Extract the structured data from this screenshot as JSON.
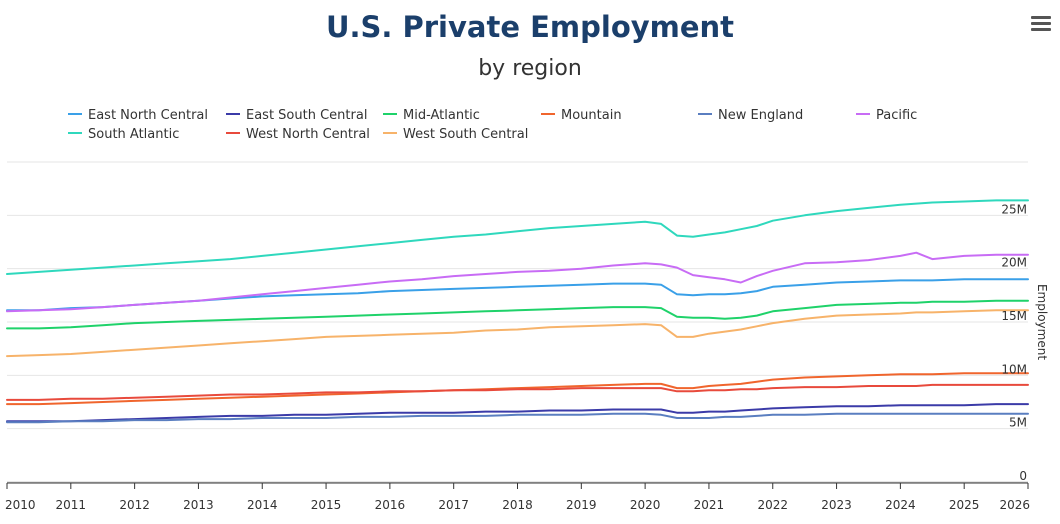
{
  "toolbar": {
    "menu_icon": "hamburger-menu-icon"
  },
  "chart_data": {
    "type": "line",
    "title": "U.S. Private Employment",
    "subtitle": "by region",
    "xlabel": "",
    "ylabel": "Employment",
    "xlim": [
      2010,
      2026
    ],
    "ylim": [
      0,
      30000000
    ],
    "y_axis_position": "right",
    "grid": true,
    "legend_position": "top",
    "x_ticks": [
      "2010",
      "2011",
      "2012",
      "2013",
      "2014",
      "2015",
      "2016",
      "2017",
      "2018",
      "2019",
      "2020",
      "2021",
      "2022",
      "2023",
      "2024",
      "2025",
      "2026"
    ],
    "y_ticks": [
      "0",
      "5M",
      "10M",
      "15M",
      "20M",
      "25M"
    ],
    "x": [
      2010,
      2010.5,
      2011,
      2011.5,
      2012,
      2012.5,
      2013,
      2013.5,
      2014,
      2014.5,
      2015,
      2015.5,
      2016,
      2016.5,
      2017,
      2017.5,
      2018,
      2018.5,
      2019,
      2019.5,
      2020,
      2020.25,
      2020.5,
      2020.75,
      2021,
      2021.25,
      2021.5,
      2021.75,
      2022,
      2022.5,
      2023,
      2023.5,
      2024,
      2024.25,
      2024.5,
      2025,
      2025.5,
      2026
    ],
    "series": [
      {
        "name": "East North Central",
        "color": "#3aa0e8",
        "values": [
          16.1,
          16.1,
          16.3,
          16.4,
          16.6,
          16.8,
          17.0,
          17.2,
          17.4,
          17.5,
          17.6,
          17.7,
          17.9,
          18.0,
          18.1,
          18.2,
          18.3,
          18.4,
          18.5,
          18.6,
          18.6,
          18.5,
          17.6,
          17.5,
          17.6,
          17.6,
          17.7,
          17.9,
          18.3,
          18.5,
          18.7,
          18.8,
          18.9,
          18.9,
          18.9,
          19.0,
          19.0,
          19.0
        ]
      },
      {
        "name": "East South Central",
        "color": "#3b3ba8",
        "values": [
          5.7,
          5.7,
          5.7,
          5.8,
          5.9,
          6.0,
          6.1,
          6.2,
          6.2,
          6.3,
          6.3,
          6.4,
          6.5,
          6.5,
          6.5,
          6.6,
          6.6,
          6.7,
          6.7,
          6.8,
          6.8,
          6.8,
          6.5,
          6.5,
          6.6,
          6.6,
          6.7,
          6.8,
          6.9,
          7.0,
          7.1,
          7.1,
          7.2,
          7.2,
          7.2,
          7.2,
          7.3,
          7.3
        ]
      },
      {
        "name": "Mid-Atlantic",
        "color": "#1fd26a",
        "values": [
          14.4,
          14.4,
          14.5,
          14.7,
          14.9,
          15.0,
          15.1,
          15.2,
          15.3,
          15.4,
          15.5,
          15.6,
          15.7,
          15.8,
          15.9,
          16.0,
          16.1,
          16.2,
          16.3,
          16.4,
          16.4,
          16.3,
          15.5,
          15.4,
          15.4,
          15.3,
          15.4,
          15.6,
          16.0,
          16.3,
          16.6,
          16.7,
          16.8,
          16.8,
          16.9,
          16.9,
          17.0,
          17.0
        ]
      },
      {
        "name": "Mountain",
        "color": "#f0652d",
        "values": [
          7.3,
          7.3,
          7.4,
          7.5,
          7.6,
          7.7,
          7.8,
          7.9,
          8.0,
          8.1,
          8.2,
          8.3,
          8.4,
          8.5,
          8.6,
          8.7,
          8.8,
          8.9,
          9.0,
          9.1,
          9.2,
          9.2,
          8.8,
          8.8,
          9.0,
          9.1,
          9.2,
          9.4,
          9.6,
          9.8,
          9.9,
          10.0,
          10.1,
          10.1,
          10.1,
          10.2,
          10.2,
          10.2
        ]
      },
      {
        "name": "New England",
        "color": "#5a7ec0",
        "values": [
          5.6,
          5.6,
          5.7,
          5.7,
          5.8,
          5.8,
          5.9,
          5.9,
          6.0,
          6.0,
          6.0,
          6.1,
          6.1,
          6.2,
          6.2,
          6.2,
          6.3,
          6.3,
          6.3,
          6.4,
          6.4,
          6.3,
          6.0,
          6.0,
          6.0,
          6.1,
          6.1,
          6.2,
          6.3,
          6.3,
          6.4,
          6.4,
          6.4,
          6.4,
          6.4,
          6.4,
          6.4,
          6.4
        ]
      },
      {
        "name": "Pacific",
        "color": "#c86cf5",
        "values": [
          16.0,
          16.1,
          16.2,
          16.4,
          16.6,
          16.8,
          17.0,
          17.3,
          17.6,
          17.9,
          18.2,
          18.5,
          18.8,
          19.0,
          19.3,
          19.5,
          19.7,
          19.8,
          20.0,
          20.3,
          20.5,
          20.4,
          20.1,
          19.4,
          19.2,
          19.0,
          18.7,
          19.3,
          19.8,
          20.5,
          20.6,
          20.8,
          21.2,
          21.5,
          20.9,
          21.2,
          21.3,
          21.3
        ]
      },
      {
        "name": "South Atlantic",
        "color": "#2fd8bd",
        "values": [
          19.5,
          19.7,
          19.9,
          20.1,
          20.3,
          20.5,
          20.7,
          20.9,
          21.2,
          21.5,
          21.8,
          22.1,
          22.4,
          22.7,
          23.0,
          23.2,
          23.5,
          23.8,
          24.0,
          24.2,
          24.4,
          24.2,
          23.1,
          23.0,
          23.2,
          23.4,
          23.7,
          24.0,
          24.5,
          25.0,
          25.4,
          25.7,
          26.0,
          26.1,
          26.2,
          26.3,
          26.4,
          26.4
        ]
      },
      {
        "name": "West North Central",
        "color": "#e84a3c",
        "values": [
          7.7,
          7.7,
          7.8,
          7.8,
          7.9,
          8.0,
          8.1,
          8.2,
          8.2,
          8.3,
          8.4,
          8.4,
          8.5,
          8.5,
          8.6,
          8.6,
          8.7,
          8.7,
          8.8,
          8.8,
          8.8,
          8.8,
          8.5,
          8.5,
          8.6,
          8.6,
          8.7,
          8.7,
          8.8,
          8.9,
          8.9,
          9.0,
          9.0,
          9.0,
          9.1,
          9.1,
          9.1,
          9.1
        ]
      },
      {
        "name": "West South Central",
        "color": "#f7b36a",
        "values": [
          11.8,
          11.9,
          12.0,
          12.2,
          12.4,
          12.6,
          12.8,
          13.0,
          13.2,
          13.4,
          13.6,
          13.7,
          13.8,
          13.9,
          14.0,
          14.2,
          14.3,
          14.5,
          14.6,
          14.7,
          14.8,
          14.7,
          13.6,
          13.6,
          13.9,
          14.1,
          14.3,
          14.6,
          14.9,
          15.3,
          15.6,
          15.7,
          15.8,
          15.9,
          15.9,
          16.0,
          16.1,
          16.1
        ]
      }
    ]
  }
}
